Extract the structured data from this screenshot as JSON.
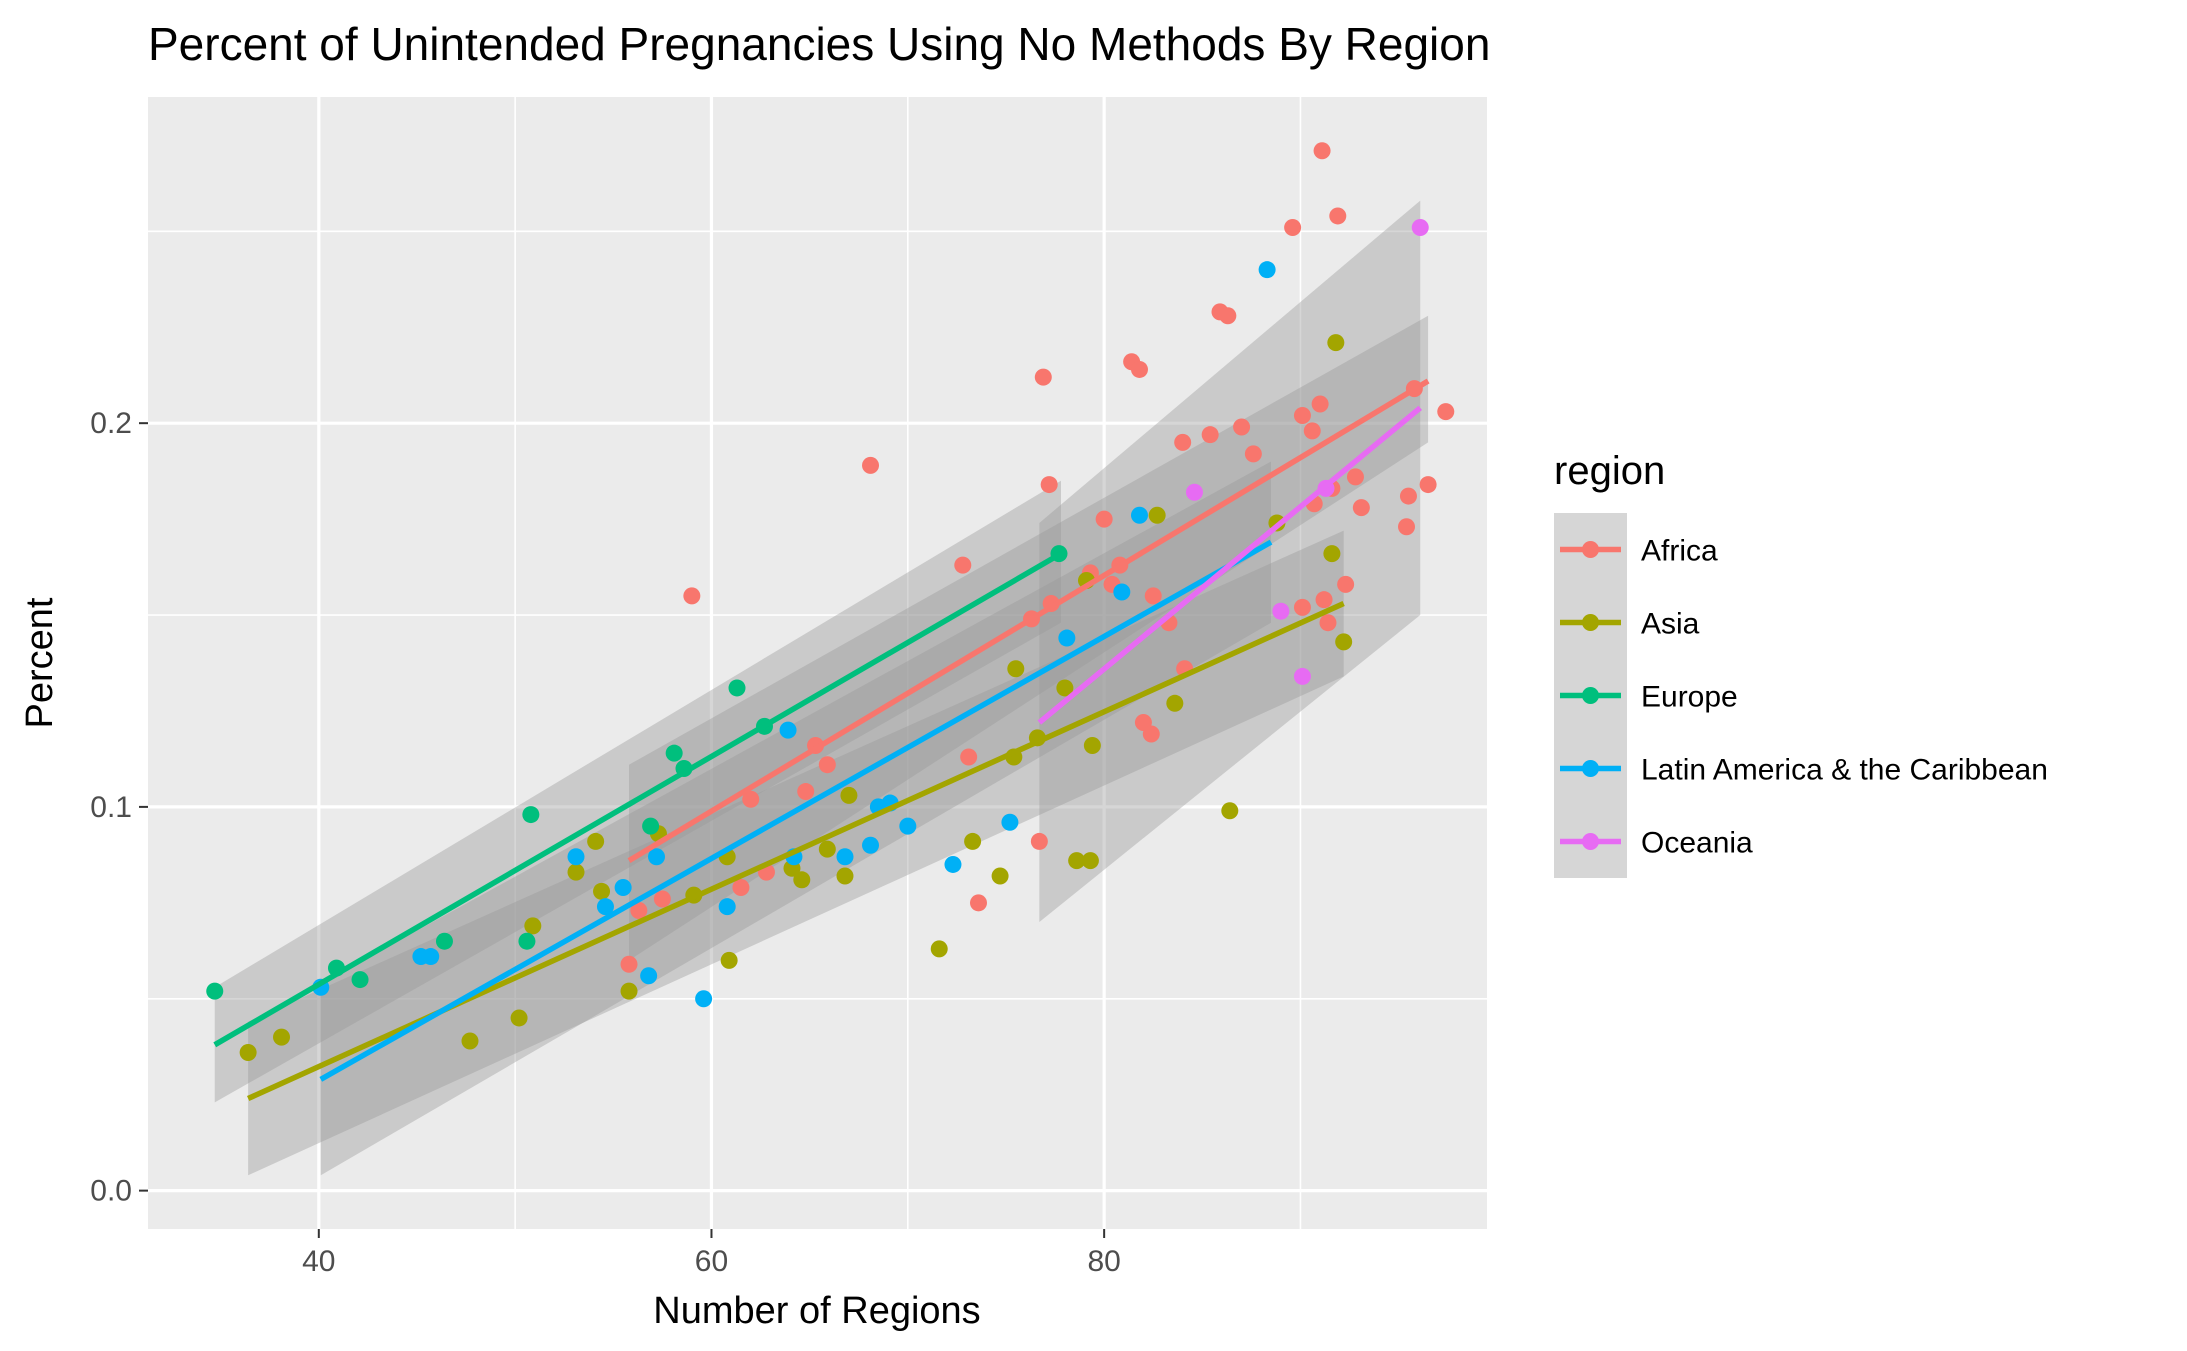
{
  "chart_data": {
    "type": "scatter",
    "title": "Percent of Unintended Pregnancies Using No Methods By Region",
    "xlabel": "Number of Regions",
    "ylabel": "Percent",
    "xlim": [
      31.3,
      99.5
    ],
    "ylim": [
      -0.01,
      0.285
    ],
    "x_ticks": [
      40,
      60,
      80
    ],
    "x_minor_ticks": [
      30,
      50,
      70,
      90
    ],
    "y_ticks": [
      0.0,
      0.1,
      0.2
    ],
    "y_tick_labels": [
      "0.0",
      "0.1",
      "0.2"
    ],
    "y_minor_ticks": [
      0.05,
      0.15,
      0.25
    ],
    "grid": true,
    "legend": {
      "title": "region",
      "position": "right"
    },
    "series": [
      {
        "name": "Africa",
        "color": "#F8766D",
        "fit": {
          "x": [
            55.8,
            96.5
          ],
          "y": [
            0.086,
            0.211
          ],
          "band_lo": [
            0.06,
            0.195
          ],
          "band_hi": [
            0.111,
            0.228
          ]
        },
        "points": [
          [
            55.8,
            0.059
          ],
          [
            56.3,
            0.073
          ],
          [
            57.5,
            0.076
          ],
          [
            59.0,
            0.155
          ],
          [
            61.5,
            0.079
          ],
          [
            62.0,
            0.102
          ],
          [
            62.8,
            0.083
          ],
          [
            64.8,
            0.104
          ],
          [
            65.3,
            0.116
          ],
          [
            65.9,
            0.111
          ],
          [
            68.1,
            0.189
          ],
          [
            72.8,
            0.163
          ],
          [
            73.1,
            0.113
          ],
          [
            73.6,
            0.075
          ],
          [
            76.3,
            0.149
          ],
          [
            76.7,
            0.091
          ],
          [
            76.9,
            0.212
          ],
          [
            77.2,
            0.184
          ],
          [
            77.3,
            0.153
          ],
          [
            79.3,
            0.161
          ],
          [
            80.0,
            0.175
          ],
          [
            80.4,
            0.158
          ],
          [
            80.8,
            0.163
          ],
          [
            81.4,
            0.216
          ],
          [
            81.8,
            0.214
          ],
          [
            82.0,
            0.122
          ],
          [
            82.4,
            0.119
          ],
          [
            82.5,
            0.155
          ],
          [
            83.3,
            0.148
          ],
          [
            84.0,
            0.195
          ],
          [
            84.1,
            0.136
          ],
          [
            85.4,
            0.197
          ],
          [
            85.9,
            0.229
          ],
          [
            86.3,
            0.228
          ],
          [
            87.0,
            0.199
          ],
          [
            87.6,
            0.192
          ],
          [
            89.6,
            0.251
          ],
          [
            90.1,
            0.152
          ],
          [
            90.1,
            0.202
          ],
          [
            90.6,
            0.198
          ],
          [
            90.7,
            0.179
          ],
          [
            91.0,
            0.205
          ],
          [
            91.1,
            0.271
          ],
          [
            91.2,
            0.154
          ],
          [
            91.4,
            0.148
          ],
          [
            91.6,
            0.183
          ],
          [
            91.9,
            0.254
          ],
          [
            92.3,
            0.158
          ],
          [
            92.8,
            0.186
          ],
          [
            93.1,
            0.178
          ],
          [
            95.4,
            0.173
          ],
          [
            95.5,
            0.181
          ],
          [
            95.8,
            0.209
          ],
          [
            96.5,
            0.184
          ],
          [
            97.4,
            0.203
          ]
        ]
      },
      {
        "name": "Asia",
        "color": "#A3A500",
        "fit": {
          "x": [
            36.4,
            92.2
          ],
          "y": [
            0.024,
            0.153
          ],
          "band_lo": [
            0.004,
            0.134
          ],
          "band_hi": [
            0.044,
            0.172
          ]
        },
        "points": [
          [
            36.4,
            0.036
          ],
          [
            38.1,
            0.04
          ],
          [
            47.7,
            0.039
          ],
          [
            50.2,
            0.045
          ],
          [
            50.9,
            0.069
          ],
          [
            53.1,
            0.083
          ],
          [
            54.1,
            0.091
          ],
          [
            54.4,
            0.078
          ],
          [
            55.8,
            0.052
          ],
          [
            57.3,
            0.093
          ],
          [
            59.1,
            0.077
          ],
          [
            60.8,
            0.087
          ],
          [
            60.9,
            0.06
          ],
          [
            64.1,
            0.084
          ],
          [
            64.6,
            0.081
          ],
          [
            65.9,
            0.089
          ],
          [
            66.8,
            0.082
          ],
          [
            67.0,
            0.103
          ],
          [
            71.6,
            0.063
          ],
          [
            73.3,
            0.091
          ],
          [
            74.7,
            0.082
          ],
          [
            75.4,
            0.113
          ],
          [
            75.5,
            0.136
          ],
          [
            76.6,
            0.118
          ],
          [
            78.0,
            0.131
          ],
          [
            78.6,
            0.086
          ],
          [
            79.1,
            0.159
          ],
          [
            79.3,
            0.086
          ],
          [
            79.4,
            0.116
          ],
          [
            82.7,
            0.176
          ],
          [
            83.6,
            0.127
          ],
          [
            86.4,
            0.099
          ],
          [
            88.8,
            0.174
          ],
          [
            91.6,
            0.166
          ],
          [
            91.8,
            0.221
          ],
          [
            92.2,
            0.143
          ]
        ]
      },
      {
        "name": "Europe",
        "color": "#00BF7D",
        "fit": {
          "x": [
            34.7,
            77.8
          ],
          "y": [
            0.038,
            0.166
          ],
          "band_lo": [
            0.023,
            0.148
          ],
          "band_hi": [
            0.053,
            0.185
          ]
        },
        "points": [
          [
            34.7,
            0.052
          ],
          [
            40.9,
            0.058
          ],
          [
            42.1,
            0.055
          ],
          [
            46.4,
            0.065
          ],
          [
            50.6,
            0.065
          ],
          [
            50.8,
            0.098
          ],
          [
            56.9,
            0.095
          ],
          [
            58.1,
            0.114
          ],
          [
            58.6,
            0.11
          ],
          [
            61.3,
            0.131
          ],
          [
            62.7,
            0.121
          ],
          [
            77.7,
            0.166
          ]
        ]
      },
      {
        "name": "Latin America & the Caribbean",
        "color": "#00B0F6",
        "fit": {
          "x": [
            40.1,
            88.5
          ],
          "y": [
            0.029,
            0.169
          ],
          "band_lo": [
            0.004,
            0.148
          ],
          "band_hi": [
            0.054,
            0.19
          ]
        },
        "points": [
          [
            40.1,
            0.053
          ],
          [
            45.2,
            0.061
          ],
          [
            45.7,
            0.061
          ],
          [
            53.1,
            0.087
          ],
          [
            54.6,
            0.074
          ],
          [
            55.5,
            0.079
          ],
          [
            56.8,
            0.056
          ],
          [
            57.2,
            0.087
          ],
          [
            59.6,
            0.05
          ],
          [
            60.8,
            0.074
          ],
          [
            63.9,
            0.12
          ],
          [
            64.2,
            0.087
          ],
          [
            66.8,
            0.087
          ],
          [
            68.1,
            0.09
          ],
          [
            68.5,
            0.1
          ],
          [
            69.1,
            0.101
          ],
          [
            70.0,
            0.095
          ],
          [
            72.3,
            0.085
          ],
          [
            75.2,
            0.096
          ],
          [
            78.1,
            0.144
          ],
          [
            80.9,
            0.156
          ],
          [
            81.8,
            0.176
          ],
          [
            88.3,
            0.24
          ]
        ]
      },
      {
        "name": "Oceania",
        "color": "#E76BF3",
        "fit": {
          "x": [
            76.7,
            96.1
          ],
          "y": [
            0.122,
            0.204
          ],
          "band_lo": [
            0.07,
            0.15
          ],
          "band_hi": [
            0.174,
            0.258
          ]
        },
        "points": [
          [
            84.6,
            0.182
          ],
          [
            89.0,
            0.151
          ],
          [
            90.1,
            0.134
          ],
          [
            91.3,
            0.183
          ],
          [
            96.1,
            0.251
          ]
        ]
      }
    ]
  }
}
